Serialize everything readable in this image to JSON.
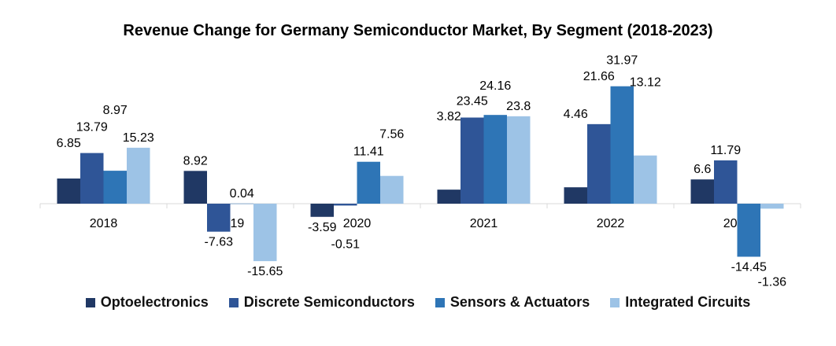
{
  "chart_data": {
    "type": "bar",
    "title": "Revenue Change for Germany Semiconductor Market, By Segment (2018-2023)",
    "categories": [
      "2018",
      "2019",
      "2020",
      "2021",
      "2022",
      "2023"
    ],
    "series": [
      {
        "name": "Optoelectronics",
        "color": "#203864",
        "values": [
          6.85,
          8.92,
          -3.59,
          3.82,
          4.46,
          6.6
        ]
      },
      {
        "name": "Discrete Semiconductors",
        "color": "#2f5597",
        "values": [
          13.79,
          -7.63,
          -0.51,
          23.45,
          21.66,
          11.79
        ]
      },
      {
        "name": "Sensors & Actuators",
        "color": "#2e75b6",
        "values": [
          8.97,
          0.04,
          11.41,
          24.16,
          31.97,
          -14.45
        ]
      },
      {
        "name": "Integrated Circuits",
        "color": "#9dc3e6",
        "values": [
          15.23,
          -15.65,
          7.56,
          23.8,
          13.12,
          -1.36
        ]
      }
    ],
    "xlabel": "",
    "ylabel": "",
    "grid": false,
    "legend": "bottom"
  }
}
